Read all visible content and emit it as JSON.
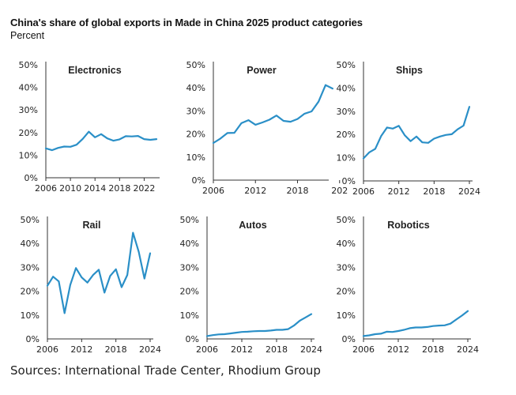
{
  "header": {
    "title": "China's share of global exports in Made in China 2025 product categories",
    "subtitle": "Percent"
  },
  "footer": {
    "source": "Sources: International Trade Center, Rhodium Group"
  },
  "colors": {
    "line": "#2a8fc7",
    "axis": "#333333",
    "text": "#222222"
  },
  "chart_data": [
    {
      "type": "line",
      "title": "Electronics",
      "ylim": [
        0,
        50
      ],
      "yticks": [
        "0%",
        "10%",
        "20%",
        "30%",
        "40%",
        "50%"
      ],
      "xlim": [
        2006,
        2024
      ],
      "xticks": [
        2006,
        2010,
        2014,
        2018,
        2022
      ],
      "grid": false,
      "x": [
        2006,
        2007,
        2008,
        2009,
        2010,
        2011,
        2012,
        2013,
        2014,
        2015,
        2016,
        2017,
        2018,
        2019,
        2020,
        2021,
        2022,
        2023,
        2024
      ],
      "y": [
        13,
        12.2,
        13.2,
        13.8,
        13.7,
        14.6,
        17.2,
        20.4,
        17.9,
        19.3,
        17.4,
        16.4,
        17,
        18.4,
        18.3,
        18.5,
        17.1,
        16.8,
        17.1
      ]
    },
    {
      "type": "line",
      "title": "Power",
      "ylim": [
        0,
        50
      ],
      "yticks": [
        "0%",
        "10%",
        "20%",
        "30%",
        "40%",
        "50%"
      ],
      "xlim": [
        2006,
        2022
      ],
      "xticks": [
        2006,
        2012,
        2018,
        "202"
      ],
      "grid": false,
      "x": [
        2006,
        2007,
        2008,
        2009,
        2010,
        2011,
        2012,
        2013,
        2014,
        2015,
        2016,
        2017,
        2018,
        2019,
        2020,
        2021,
        2022,
        2023
      ],
      "y": [
        16.1,
        18,
        20.4,
        20.5,
        24.7,
        26,
        24,
        25,
        26.2,
        28,
        25.7,
        25.3,
        26.5,
        28.8,
        29.8,
        34,
        41.2,
        39.7
      ]
    },
    {
      "type": "line",
      "title": "Ships",
      "ylim": [
        0,
        50
      ],
      "yticks": [
        "0%",
        "10%",
        "20%",
        "30%",
        "40%",
        "50%"
      ],
      "xlim": [
        2006,
        2024
      ],
      "xticks": [
        2006,
        2012,
        2018,
        2024
      ],
      "grid": false,
      "x": [
        2006,
        2007,
        2008,
        2009,
        2010,
        2011,
        2012,
        2013,
        2014,
        2015,
        2016,
        2017,
        2018,
        2019,
        2020,
        2021,
        2022,
        2023,
        2024
      ],
      "y": [
        9.7,
        12.3,
        13.8,
        19.3,
        23,
        22.5,
        23.7,
        19.7,
        17.1,
        19.1,
        16.6,
        16.4,
        18.2,
        19.1,
        19.8,
        20.1,
        22.2,
        23.8,
        31.9
      ]
    },
    {
      "type": "line",
      "title": "Rail",
      "ylim": [
        0,
        50
      ],
      "yticks": [
        "0%",
        "10%",
        "20%",
        "30%",
        "40%",
        "50%"
      ],
      "xlim": [
        2006,
        2024
      ],
      "xticks": [
        2006,
        2012,
        2018,
        2024
      ],
      "grid": false,
      "x": [
        2006,
        2007,
        2008,
        2009,
        2010,
        2011,
        2012,
        2013,
        2014,
        2015,
        2016,
        2017,
        2018,
        2019,
        2020,
        2021,
        2022,
        2023,
        2024
      ],
      "y": [
        22.3,
        26.1,
        24.1,
        10.8,
        22.6,
        29.7,
        25.8,
        23.6,
        26.8,
        29,
        19.4,
        26.4,
        29.2,
        21.7,
        26.8,
        44.5,
        36.5,
        25.3,
        35.9
      ]
    },
    {
      "type": "line",
      "title": "Autos",
      "ylim": [
        0,
        50
      ],
      "yticks": [
        "0%",
        "10%",
        "20%",
        "30%",
        "40%",
        "50%"
      ],
      "xlim": [
        2006,
        2024
      ],
      "xticks": [
        2006,
        2012,
        2018,
        2024
      ],
      "grid": false,
      "x": [
        2006,
        2007,
        2008,
        2009,
        2010,
        2011,
        2012,
        2013,
        2014,
        2015,
        2016,
        2017,
        2018,
        2019,
        2020,
        2021,
        2022,
        2023,
        2024
      ],
      "y": [
        1.2,
        1.6,
        1.9,
        2,
        2.3,
        2.6,
        2.9,
        3,
        3.2,
        3.3,
        3.3,
        3.5,
        3.8,
        3.8,
        4.1,
        5.6,
        7.6,
        9,
        10.4
      ]
    },
    {
      "type": "line",
      "title": "Robotics",
      "ylim": [
        0,
        50
      ],
      "yticks": [
        "0%",
        "10%",
        "20%",
        "30%",
        "40%",
        "50%"
      ],
      "xlim": [
        2006,
        2024
      ],
      "xticks": [
        2006,
        2012,
        2018,
        2024
      ],
      "grid": false,
      "x": [
        2006,
        2007,
        2008,
        2009,
        2010,
        2011,
        2012,
        2013,
        2014,
        2015,
        2016,
        2017,
        2018,
        2019,
        2020,
        2021,
        2022,
        2023,
        2024
      ],
      "y": [
        1.2,
        1.5,
        2,
        2.2,
        3,
        2.9,
        3.3,
        3.8,
        4.5,
        4.8,
        4.8,
        5,
        5.4,
        5.6,
        5.7,
        6.4,
        8.1,
        9.8,
        11.7
      ]
    }
  ]
}
